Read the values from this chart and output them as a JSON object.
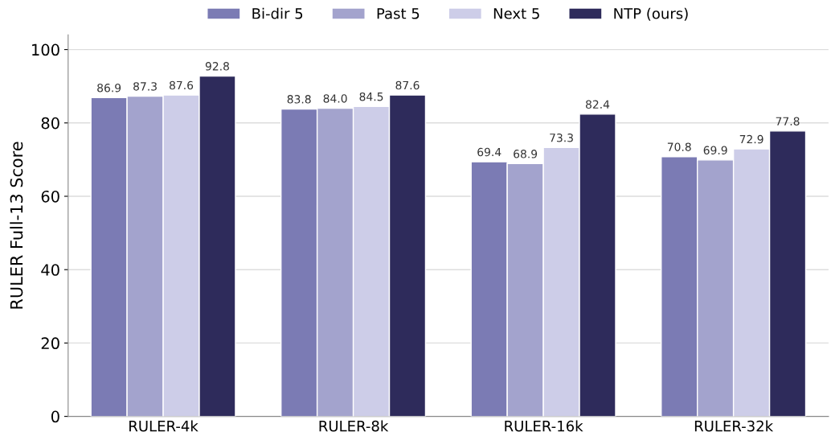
{
  "chart_data": {
    "type": "bar",
    "ylabel": "RULER Full-13 Score",
    "categories": [
      "RULER-4k",
      "RULER-8k",
      "RULER-16k",
      "RULER-32k"
    ],
    "series": [
      {
        "name": "Bi-dir 5",
        "color": "#7b7bb4",
        "values": [
          86.9,
          83.8,
          69.4,
          70.8
        ],
        "value_labels": [
          "86.9",
          "83.8",
          "69.4",
          "70.8"
        ]
      },
      {
        "name": "Past 5",
        "color": "#a3a3cd",
        "values": [
          87.3,
          84.0,
          68.9,
          69.9
        ],
        "value_labels": [
          "87.3",
          "84.0",
          "68.9",
          "69.9"
        ]
      },
      {
        "name": "Next 5",
        "color": "#cdcde8",
        "values": [
          87.6,
          84.5,
          73.3,
          72.9
        ],
        "value_labels": [
          "87.6",
          "84.5",
          "73.3",
          "72.9"
        ]
      },
      {
        "name": "NTP (ours)",
        "color": "#2e2b5b",
        "values": [
          92.8,
          87.6,
          82.4,
          77.8
        ],
        "value_labels": [
          "92.8",
          "87.6",
          "82.4",
          "77.8"
        ]
      }
    ],
    "ylim": [
      0,
      104
    ],
    "yticks": [
      0,
      20,
      40,
      60,
      80,
      100
    ],
    "grid": "y",
    "legend": "top"
  }
}
